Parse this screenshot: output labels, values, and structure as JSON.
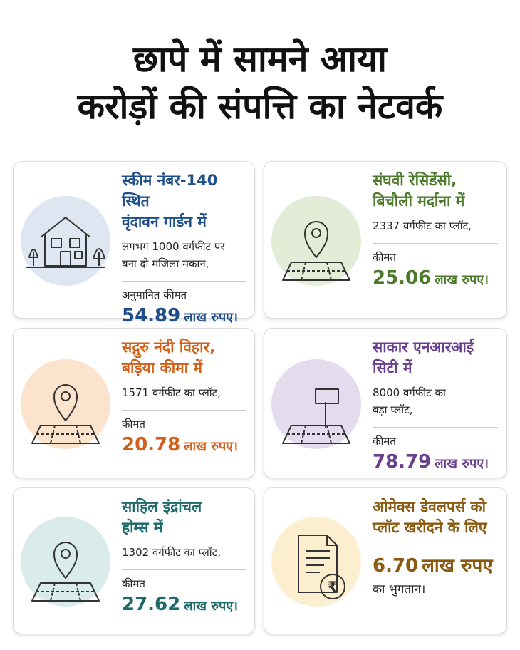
{
  "title": {
    "lines": [
      "छापे में सामने आया",
      "करोड़ों की संपत्ति का नेटवर्क"
    ]
  },
  "cards": [
    {
      "heading": [
        "स्कीम नंबर-140 स्थित",
        "वृंदावन गार्डन में"
      ],
      "description": [
        "लगभग 1000 वर्गफीट पर",
        "बना दो मंजिला मकान,"
      ],
      "price_label": "अनुमानित कीमत",
      "price_amount": "54.89",
      "price_unit": "लाख रुपए।"
    },
    {
      "heading": [
        "संघवी रेसिडेंसी,",
        "बिचौली मर्दाना में"
      ],
      "description": [
        "2337 वर्गफीट का प्लॉट,"
      ],
      "price_label": "कीमत",
      "price_amount": "25.06",
      "price_unit": "लाख रुपए।"
    },
    {
      "heading": [
        "सद्गुरु नंदी विहार,",
        "बड़िया कीमा में"
      ],
      "description": [
        "1571 वर्गफीट का प्लॉट,"
      ],
      "price_label": "कीमत",
      "price_amount": "20.78",
      "price_unit": "लाख रुपए।"
    },
    {
      "heading": [
        "साकार एनआरआई",
        "सिटी में"
      ],
      "description": [
        "8000 वर्गफीट का",
        "बड़ा प्लॉट,"
      ],
      "price_label": "कीमत",
      "price_amount": "78.79",
      "price_unit": "लाख रुपए।"
    },
    {
      "heading": [
        "साहिल इंद्रांचल",
        "होम्स में"
      ],
      "description": [
        "1302 वर्गफीट का प्लॉट,"
      ],
      "price_label": "कीमत",
      "price_amount": "27.62",
      "price_unit": "लाख रुपए।"
    },
    {
      "heading": [
        "ओमेक्स डेवलपर्स को",
        "प्लॉट खरीदने के लिए"
      ],
      "price_amount": "6.70",
      "price_unit": "लाख रुपए",
      "price_note": "का भुगतान।",
      "icon_symbol": "₹"
    }
  ]
}
